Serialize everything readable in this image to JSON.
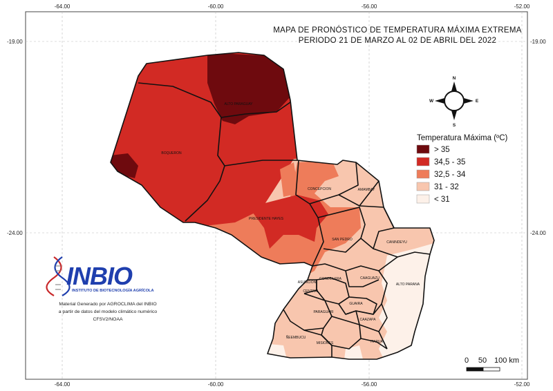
{
  "title": {
    "line1": "MAPA DE PRONÓSTICO DE TEMPERATURA MÁXIMA EXTREMA",
    "line2": "PERIODO 21 DE MARZO AL 02 DE ABRIL DEL 2022"
  },
  "axes": {
    "longitude_labels": [
      "-64.00",
      "-60.00",
      "-56.00",
      "-52.00"
    ],
    "latitude_labels": [
      "-19.00",
      "-24.00"
    ]
  },
  "legend": {
    "title": "Temperatura Máxima (ºC)",
    "items": [
      {
        "label": "> 35",
        "color": "#6e0a0e"
      },
      {
        "label": "34,5 - 35",
        "color": "#d22a24"
      },
      {
        "label": "32,5 - 34",
        "color": "#ee7c5a"
      },
      {
        "label": "31 - 32",
        "color": "#f8c6ae"
      },
      {
        "label": "< 31",
        "color": "#fdf1e9"
      }
    ]
  },
  "compass": {
    "n": "N",
    "s": "S",
    "e": "E",
    "w": "W"
  },
  "departments": {
    "alto_paraguay": "ALTO PARAGUAY",
    "boqueron": "BOQUERON",
    "presidente_hayes": "PRESIDENTE HAYES",
    "concepcion": "CONCEPCION",
    "amambay": "AMAMBAY",
    "san_pedro": "SAN PEDRO",
    "canindeyu": "CANINDEYU",
    "cordillera": "CORDILLERA",
    "asuncion": "ASUNCION",
    "central": "CENTRAL",
    "caaguazu": "CAAGUAZU",
    "alto_parana": "ALTO PARANA",
    "guaira": "GUAIRA",
    "paraguari": "PARAGUARI",
    "caazapa": "CAAZAPA",
    "neembucu": "ÑEEMBUCU",
    "misiones": "MISIONES",
    "itapua": "ITAPUA"
  },
  "logo": {
    "name": "INBIO",
    "subtitle": "INSTITUTO DE BIOTECNOLOGÍA AGRÍCOLA"
  },
  "credit": {
    "line1": "Material Generado por AGROCLIMA del INBIO",
    "line2": "a partir de datos del modelo climático numérico",
    "line3": "CFSV2/NOAA"
  },
  "scale_bar": {
    "l0": "0",
    "l1": "50",
    "l2": "100 km"
  }
}
